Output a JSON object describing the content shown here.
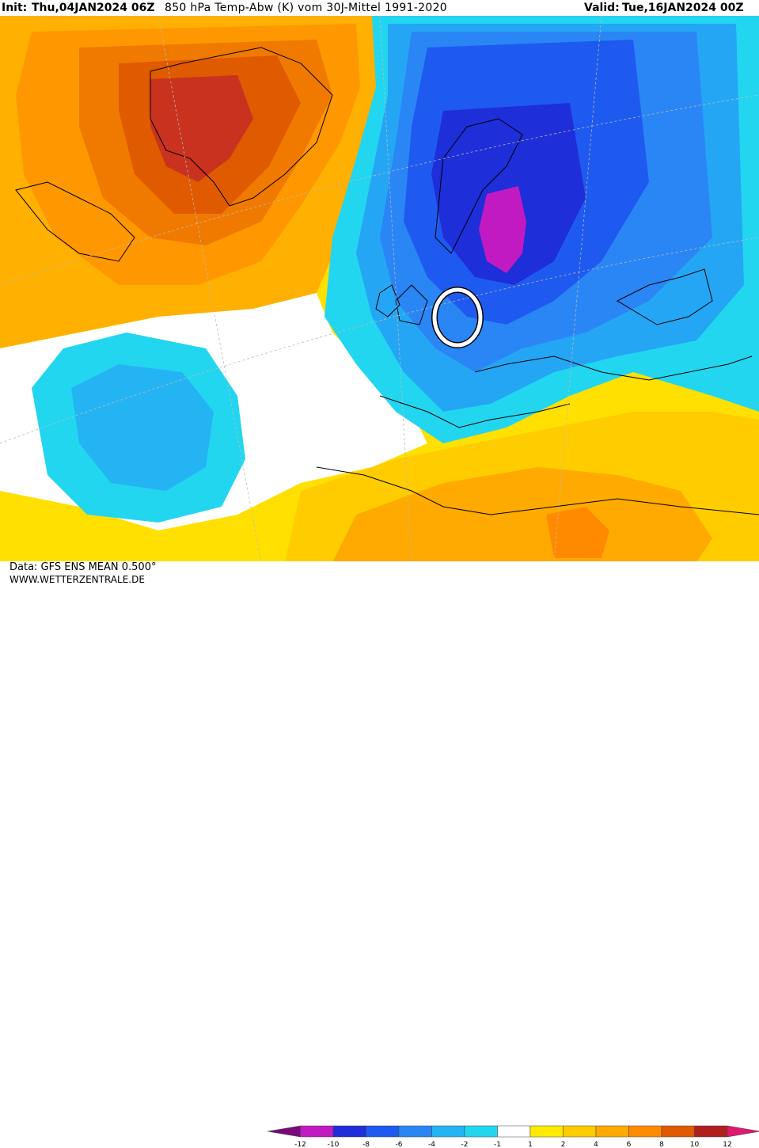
{
  "header": {
    "init_label": "Init:",
    "init_value": "Thu,04JAN2024 06Z",
    "title": "850 hPa Temp-Abw (K) vom 30J-Mittel 1991-2020",
    "valid_label": "Valid:",
    "valid_value": "Tue,16JAN2024 00Z"
  },
  "footer": {
    "data_source": "Data: GFS ENS MEAN 0.500°",
    "website": "WWW.WETTERZENTRALE.DE"
  },
  "legend": {
    "colors": [
      "#7a0a7a",
      "#c21ac2",
      "#1e2ed8",
      "#1e5af0",
      "#2a86f5",
      "#24b4f4",
      "#22d6f0",
      "#ffffff",
      "#ffea00",
      "#ffcc00",
      "#ffaa00",
      "#ff8a00",
      "#e05a00",
      "#b01e1e",
      "#e0186e"
    ],
    "tick_labels": [
      "-12",
      "-10",
      "-8",
      "-6",
      "-4",
      "-2",
      "-1",
      "1",
      "2",
      "4",
      "6",
      "8",
      "10",
      "12"
    ]
  },
  "colors": {
    "warm_strong": "#c8321e",
    "warm": "#f07a00",
    "warm_light": "#ffb000",
    "mild": "#ffe000",
    "neutral": "#ffffff",
    "cool_light": "#22d6f0",
    "cool": "#24a6f4",
    "cold": "#1e5af0",
    "very_cold": "#1e2ed8",
    "extreme_cold": "#c21ac2"
  }
}
